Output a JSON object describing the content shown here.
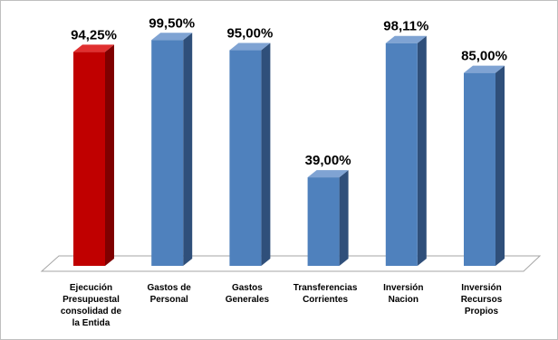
{
  "chart_data": {
    "type": "bar",
    "style": "3d-column",
    "categories": [
      [
        "Ejecución",
        "Presupuestal",
        "consolidad de",
        "la Entida"
      ],
      [
        "Gastos de",
        "Personal"
      ],
      [
        "Gastos",
        "Generales"
      ],
      [
        "Transferencias",
        "Corrientes"
      ],
      [
        "Inversión",
        "Nacion"
      ],
      [
        "Inversión",
        "Recursos",
        "Propios"
      ]
    ],
    "values": [
      94.25,
      99.5,
      95.0,
      39.0,
      98.11,
      85.0
    ],
    "value_labels": [
      "94,25%",
      "99,50%",
      "95,00%",
      "39,00%",
      "98,11%",
      "85,00%"
    ],
    "ylim": [
      0,
      100
    ],
    "grid": false,
    "legend": "none",
    "title": "",
    "xlabel": "",
    "ylabel": "",
    "colors": {
      "highlight_front": "#C00000",
      "highlight_side": "#7F0000",
      "highlight_top": "#E03030",
      "default_front": "#4F81BD",
      "default_side": "#2F4F7A",
      "default_top": "#7FA3D3",
      "floor": "#FFFFFF",
      "floor_edge": "#A6A6A6"
    },
    "highlight_index": 0
  }
}
